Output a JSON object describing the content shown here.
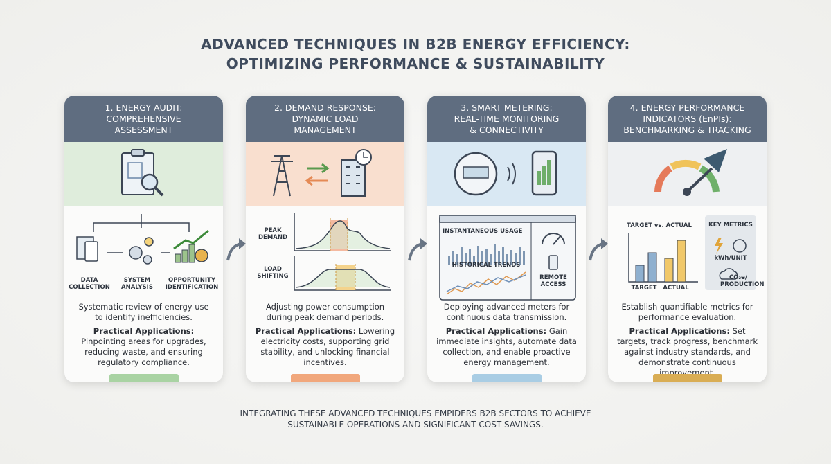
{
  "title": [
    "ADVANCED TECHNIQUES IN B2B ENERGY EFFICIENCY:",
    "OPTIMIZING PERFORMANCE & SUSTAINABILITY"
  ],
  "cards": [
    {
      "header": [
        "1. ENERGY AUDIT:",
        "COMPREHENSIVE",
        "ASSESSMENT"
      ],
      "labels": [
        "DATA COLLECTION",
        "SYSTEM ANALYSIS",
        "OPPORTUNITY IDENTIFICATION"
      ],
      "description": "Systematic review of energy use to identify inefficiencies.",
      "practical_label": "Practical Applications:",
      "practical_text": "Pinpointing areas for upgrades, reducing waste, and ensuring regulatory compliance."
    },
    {
      "header": [
        "2. DEMAND RESPONSE:",
        "DYNAMIC LOAD",
        "MANAGEMENT"
      ],
      "labels": [
        "PEAK DEMAND",
        "LOAD SHIFTING"
      ],
      "description": "Adjusting power consumption during peak demand periods.",
      "practical_label": "Practical Applications:",
      "practical_text": "Lowering electricity costs, supporting grid stability, and unlocking financial incentives."
    },
    {
      "header": [
        "3. SMART METERING:",
        "REAL-TIME MONITORING",
        "& CONNECTIVITY"
      ],
      "labels": [
        "INSTANTANEOUS USAGE",
        "HISTORICAL TRENDS",
        "REMOTE ACCESS"
      ],
      "description": "Deploying advanced meters for continuous data transmission.",
      "practical_label": "Practical Applications:",
      "practical_text": "Gain immediate insights, automate data collection, and enable proactive energy management."
    },
    {
      "header": [
        "4. ENERGY PERFORMANCE",
        "INDICATORS (EnPIs):",
        "BENCHMARKING & TRACKING"
      ],
      "labels": [
        "TARGET vs. ACTUAL",
        "TARGET",
        "ACTUAL",
        "KEY METRICS",
        "kWh/UNIT",
        "CO₂e/ PRODUCTION"
      ],
      "description": "Establish quantifiable metrics for performance evaluation.",
      "practical_label": "Practical Applications:",
      "practical_text": "Set targets, track progress, benchmark against industry standards, and demonstrate continuous improvement."
    }
  ],
  "footer": [
    "INTEGRATING THESE ADVANCED TECHNIQUES EMPIDERS B2B SECTORS TO ACHIEVE",
    "SUSTAINABLE OPERATIONS AND SIGNIFICANT COST SAVINGS."
  ]
}
